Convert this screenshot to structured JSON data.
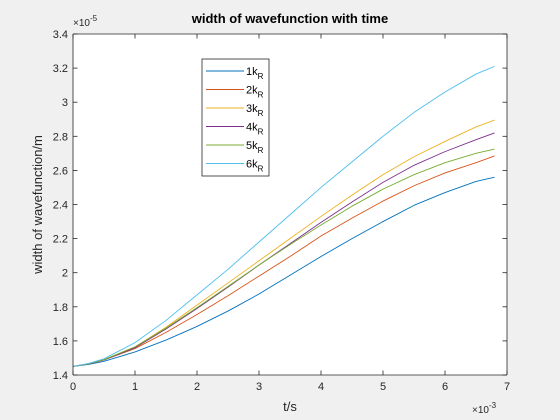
{
  "chart_data": {
    "type": "line",
    "title": "width of wavefunction with time",
    "xlabel": "t/s",
    "ylabel": "width of wavefunction/m",
    "x_exponent_base": "×10",
    "x_exponent_power": "-3",
    "y_exponent_base": "×10",
    "y_exponent_power": "-5",
    "xlim": [
      0,
      7
    ],
    "ylim": [
      1.4,
      3.4
    ],
    "x_ticks": [
      "0",
      "1",
      "2",
      "3",
      "4",
      "5",
      "6",
      "7"
    ],
    "y_ticks": [
      "1.4",
      "1.6",
      "1.8",
      "2",
      "2.2",
      "2.4",
      "2.6",
      "2.8",
      "3",
      "3.2",
      "3.4"
    ],
    "legend_position": "top-left",
    "x": [
      0,
      0.25,
      0.5,
      1,
      1.5,
      2,
      2.5,
      3,
      3.5,
      4,
      4.5,
      5,
      5.5,
      6,
      6.5,
      6.8
    ],
    "series": [
      {
        "name": "1k",
        "subscript": "R",
        "color": "#0072bd",
        "values": [
          1.45,
          1.462,
          1.48,
          1.535,
          1.605,
          1.685,
          1.775,
          1.875,
          1.985,
          2.095,
          2.2,
          2.3,
          2.395,
          2.47,
          2.535,
          2.56
        ]
      },
      {
        "name": "2k",
        "subscript": "R",
        "color": "#d95319",
        "values": [
          1.45,
          1.465,
          1.488,
          1.555,
          1.65,
          1.755,
          1.865,
          1.98,
          2.095,
          2.215,
          2.32,
          2.42,
          2.51,
          2.585,
          2.645,
          2.685
        ]
      },
      {
        "name": "3k",
        "subscript": "R",
        "color": "#edb120",
        "values": [
          1.45,
          1.466,
          1.49,
          1.565,
          1.68,
          1.81,
          1.94,
          2.07,
          2.2,
          2.33,
          2.455,
          2.575,
          2.68,
          2.77,
          2.855,
          2.895
        ]
      },
      {
        "name": "4k",
        "subscript": "R",
        "color": "#7e2f8e",
        "values": [
          1.45,
          1.466,
          1.488,
          1.56,
          1.67,
          1.79,
          1.915,
          2.045,
          2.17,
          2.295,
          2.415,
          2.53,
          2.63,
          2.71,
          2.78,
          2.82
        ]
      },
      {
        "name": "5k",
        "subscript": "R",
        "color": "#77ac30",
        "values": [
          1.45,
          1.466,
          1.49,
          1.565,
          1.675,
          1.795,
          1.92,
          2.045,
          2.165,
          2.28,
          2.39,
          2.49,
          2.575,
          2.645,
          2.7,
          2.725
        ]
      },
      {
        "name": "6k",
        "subscript": "R",
        "color": "#4dbeee",
        "values": [
          1.45,
          1.468,
          1.495,
          1.59,
          1.72,
          1.87,
          2.02,
          2.18,
          2.34,
          2.5,
          2.65,
          2.8,
          2.94,
          3.06,
          3.165,
          3.21
        ]
      }
    ]
  }
}
